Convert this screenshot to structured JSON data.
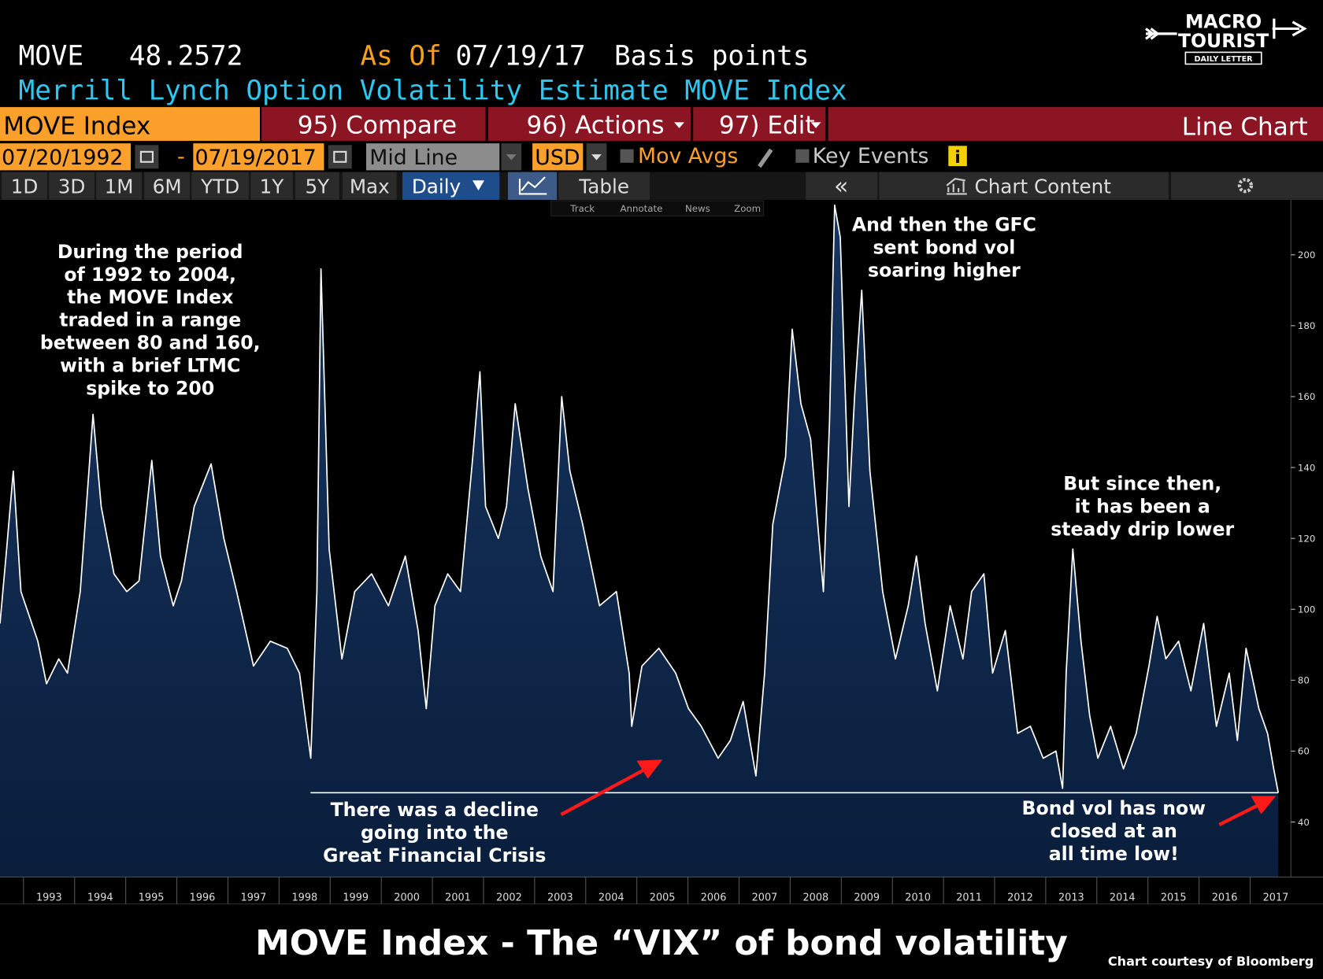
{
  "header": {
    "ticker": "MOVE",
    "as_of_label": "As Of",
    "as_of_date": "07/19/17",
    "units": "Basis points",
    "description": "Merrill Lynch Option Volatility Estimate MOVE Index"
  },
  "logo": {
    "line1": "MACRO",
    "line2": "TOURIST",
    "line3": "DAILY LETTER"
  },
  "toolbar": {
    "security": "MOVE Index",
    "compare": "95) Compare",
    "actions": "96) Actions",
    "edit": "97) Edit",
    "chart_type": "Line Chart",
    "start_date": "07/20/1992",
    "date_separator": "-",
    "end_date": "07/19/2017",
    "price_field": "Mid Line",
    "currency": "USD",
    "mov_avgs": "Mov Avgs",
    "key_events": "Key Events",
    "info": "i",
    "periods": [
      "1D",
      "3D",
      "1M",
      "6M",
      "YTD",
      "1Y",
      "5Y",
      "Max"
    ],
    "frequency": "Daily",
    "table": "Table",
    "collapse": "«",
    "chart_content": "Chart Content",
    "tools": [
      "Track",
      "Annotate",
      "News",
      "Zoom"
    ]
  },
  "chart_data": {
    "type": "area",
    "title": "MOVE Index - The “VIX” of bond volatility",
    "source": "Chart courtesy of Bloomberg",
    "last_value": 48.2572,
    "line_color": "#ffffff",
    "fill_color": "#10294b",
    "x": [
      1992.54,
      1992.67,
      1992.8,
      1992.95,
      1993.28,
      1993.45,
      1993.69,
      1993.86,
      1994.11,
      1994.36,
      1994.52,
      1994.77,
      1995.02,
      1995.26,
      1995.51,
      1995.68,
      1995.93,
      1996.09,
      1996.34,
      1996.67,
      1996.92,
      1997.17,
      1997.5,
      1997.83,
      1998.16,
      1998.4,
      1998.62,
      1998.74,
      1998.82,
      1998.98,
      1999.23,
      1999.48,
      1999.81,
      2000.14,
      2000.47,
      2000.72,
      2000.88,
      2001.05,
      2001.3,
      2001.55,
      2001.79,
      2001.93,
      2002.04,
      2002.29,
      2002.45,
      2002.62,
      2002.87,
      2003.12,
      2003.36,
      2003.53,
      2003.69,
      2003.94,
      2004.27,
      2004.6,
      2004.85,
      2004.9,
      2005.1,
      2005.43,
      2005.76,
      2006.01,
      2006.26,
      2006.59,
      2006.83,
      2007.08,
      2007.33,
      2007.5,
      2007.66,
      2007.91,
      2008.04,
      2008.21,
      2008.4,
      2008.65,
      2008.77,
      2008.87,
      2008.98,
      2009.15,
      2009.26,
      2009.4,
      2009.56,
      2009.81,
      2010.06,
      2010.31,
      2010.47,
      2010.64,
      2010.88,
      2011.13,
      2011.38,
      2011.55,
      2011.79,
      2011.96,
      2012.21,
      2012.45,
      2012.7,
      2012.95,
      2013.2,
      2013.33,
      2013.4,
      2013.53,
      2013.69,
      2013.86,
      2014.02,
      2014.27,
      2014.52,
      2014.77,
      2015.02,
      2015.18,
      2015.35,
      2015.6,
      2015.84,
      2016.09,
      2016.34,
      2016.59,
      2016.75,
      2016.92,
      2017.17,
      2017.34,
      2017.46,
      2017.55
    ],
    "values": [
      96,
      117,
      139,
      105,
      91,
      79,
      86,
      82,
      105,
      155,
      129,
      110,
      105,
      108,
      142,
      115,
      101,
      108,
      129,
      141,
      120,
      105,
      84,
      91,
      89,
      82,
      58,
      105,
      196,
      117,
      86,
      105,
      110,
      101,
      115,
      94,
      72,
      101,
      110,
      105,
      143,
      167,
      129,
      120,
      129,
      158,
      134,
      115,
      105,
      160,
      139,
      124,
      101,
      105,
      82,
      67,
      84,
      89,
      82,
      72,
      67,
      58,
      63,
      74,
      53,
      82,
      124,
      143,
      179,
      158,
      148,
      105,
      153,
      214,
      205,
      129,
      160,
      190,
      139,
      105,
      86,
      101,
      115,
      96,
      77,
      101,
      86,
      105,
      110,
      82,
      94,
      65,
      67,
      58,
      60,
      49.5,
      82,
      117,
      91,
      70,
      58,
      67,
      55,
      65,
      84,
      98,
      86,
      91,
      77,
      96,
      67,
      82,
      63,
      89,
      72,
      65,
      55,
      48.2572
    ],
    "xlim": [
      1992.54,
      2017.55
    ],
    "ylim": [
      24.5,
      215.5
    ],
    "xticks": [
      1993,
      1994,
      1995,
      1996,
      1997,
      1998,
      1999,
      2000,
      2001,
      2002,
      2003,
      2004,
      2005,
      2006,
      2007,
      2008,
      2009,
      2010,
      2011,
      2012,
      2013,
      2014,
      2015,
      2016,
      2017
    ],
    "yticks": [
      40,
      60,
      80,
      100,
      120,
      140,
      160,
      180,
      200
    ],
    "grid": false,
    "annotations": [
      {
        "lines": [
          "During the period",
          "of 1992 to 2004,",
          "the MOVE Index",
          "traded in a range",
          "between 80 and 160,",
          "with a brief LTMC",
          "spike to 200"
        ]
      },
      {
        "lines": [
          "And then the GFC",
          "sent bond vol",
          "soaring higher"
        ]
      },
      {
        "lines": [
          "There was a decline",
          "going into the",
          "Great Financial Crisis"
        ]
      },
      {
        "lines": [
          "But since then,",
          "it has been a",
          "steady drip lower"
        ]
      },
      {
        "lines": [
          "Bond vol has now",
          "closed at an",
          "all time low!"
        ]
      }
    ]
  }
}
